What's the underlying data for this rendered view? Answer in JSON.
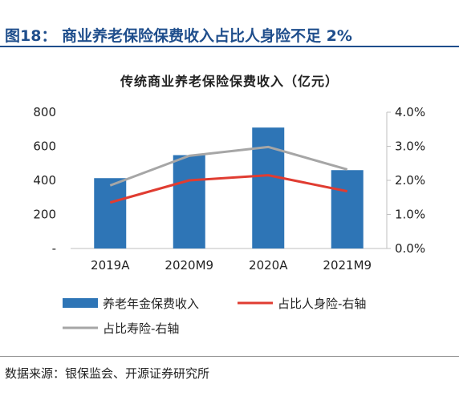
{
  "figure": {
    "title": "图18：  商业养老保险保费收入占比人身险不足 2%",
    "source": "数据来源：银保监会、开源证券研究所"
  },
  "chart_data": {
    "type": "bar",
    "title": "传统商业养老保险保费收入（亿元）",
    "categories": [
      "2019A",
      "2020M9",
      "2020A",
      "2021M9"
    ],
    "series": [
      {
        "name": "养老年金保费收入",
        "type": "bar",
        "axis": "left",
        "color": "#2e75b6",
        "values": [
          413,
          548,
          710,
          460
        ]
      },
      {
        "name": "占比人身险-右轴",
        "type": "line",
        "axis": "right",
        "color": "#e03c31",
        "values": [
          0.0135,
          0.02,
          0.0215,
          0.0168
        ]
      },
      {
        "name": "占比寿险-右轴",
        "type": "line",
        "axis": "right",
        "color": "#a6a6a6",
        "values": [
          0.0185,
          0.0272,
          0.0298,
          0.0232
        ]
      }
    ],
    "left_axis": {
      "ylim": [
        0,
        800
      ],
      "ticks": [
        0,
        200,
        400,
        600,
        800
      ],
      "tick_labels": [
        "-",
        "200",
        "400",
        "600",
        "800"
      ]
    },
    "right_axis": {
      "ylim": [
        0,
        0.04
      ],
      "ticks": [
        0,
        0.01,
        0.02,
        0.03,
        0.04
      ],
      "tick_labels": [
        "0.0%",
        "1.0%",
        "2.0%",
        "3.0%",
        "4.0%"
      ]
    },
    "grid": false,
    "legend_position": "bottom"
  }
}
